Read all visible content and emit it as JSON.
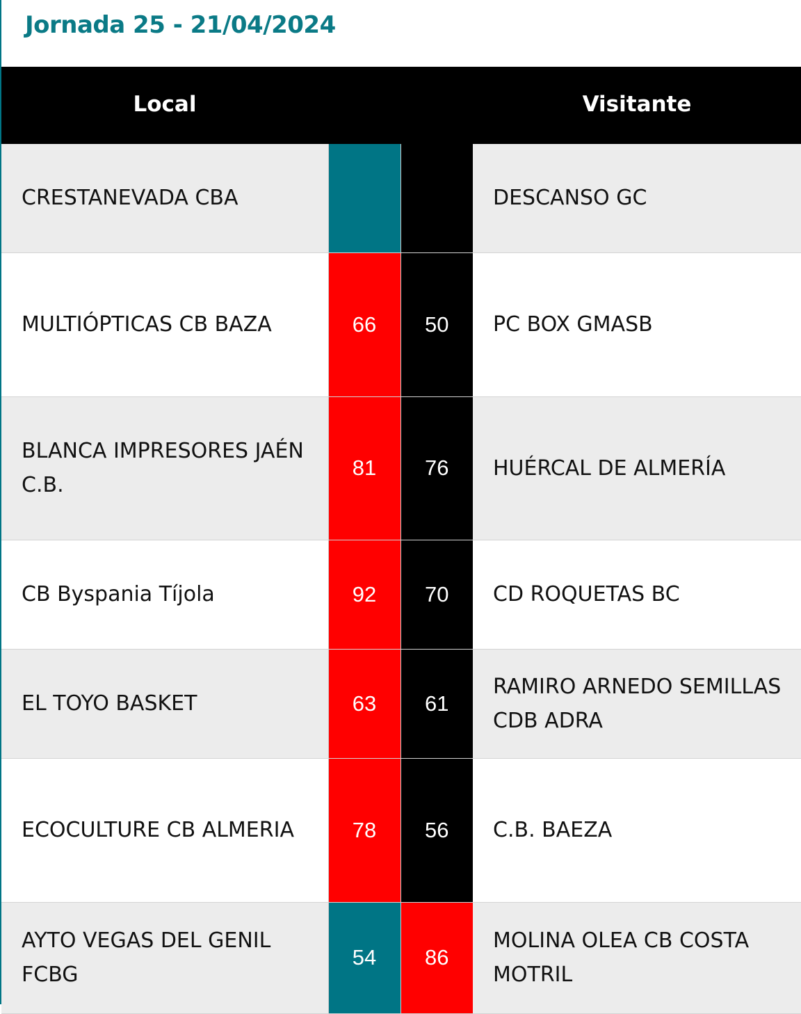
{
  "title": "Jornada 25 - 21/04/2024",
  "header": {
    "local": "Local",
    "visitante": "Visitante"
  },
  "colors": {
    "teal": "#007585",
    "red": "#ff0000",
    "black": "#000000"
  },
  "matches": [
    {
      "local": "CRESTANEVADA CBA",
      "local_score": "",
      "visitor_score": "",
      "visitor": "DESCANSO GC",
      "local_color": "#007585",
      "visitor_color": "#000000"
    },
    {
      "local": "MULTIÓPTICAS CB BAZA",
      "local_score": "66",
      "visitor_score": "50",
      "visitor": "PC BOX GMASB",
      "local_color": "#ff0000",
      "visitor_color": "#000000"
    },
    {
      "local": "BLANCA IMPRESORES JAÉN C.B.",
      "local_score": "81",
      "visitor_score": "76",
      "visitor": "HUÉRCAL DE ALMERÍA",
      "local_color": "#ff0000",
      "visitor_color": "#000000"
    },
    {
      "local": "CB Byspania Tíjola",
      "local_score": "92",
      "visitor_score": "70",
      "visitor": "CD ROQUETAS BC",
      "local_color": "#ff0000",
      "visitor_color": "#000000"
    },
    {
      "local": "EL TOYO BASKET",
      "local_score": "63",
      "visitor_score": "61",
      "visitor": "RAMIRO ARNEDO SEMILLAS CDB ADRA",
      "local_color": "#ff0000",
      "visitor_color": "#000000"
    },
    {
      "local": "ECOCULTURE CB ALMERIA",
      "local_score": "78",
      "visitor_score": "56",
      "visitor": "C.B. BAEZA",
      "local_color": "#ff0000",
      "visitor_color": "#000000"
    },
    {
      "local": "AYTO VEGAS DEL GENIL FCBG",
      "local_score": "54",
      "visitor_score": "86",
      "visitor": "MOLINA OLEA CB COSTA MOTRIL",
      "local_color": "#007585",
      "visitor_color": "#ff0000"
    }
  ]
}
